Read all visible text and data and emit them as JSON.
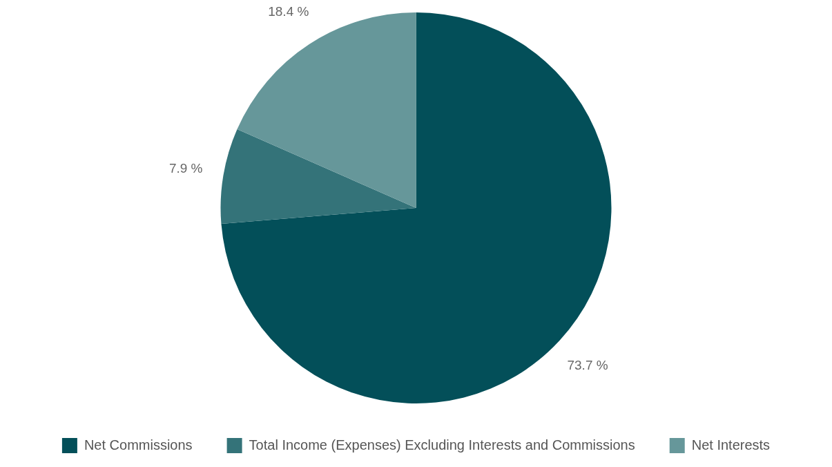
{
  "chart_data": {
    "type": "pie",
    "categories": [
      "Net Commissions",
      "Total Income (Expenses) Excluding Interests and Commissions",
      "Net Interests"
    ],
    "values": [
      73.7,
      7.9,
      18.4
    ],
    "colors": [
      "#034f59",
      "#347379",
      "#66979a"
    ],
    "value_labels": [
      "73.7 %",
      "7.9 %",
      "18.4 %"
    ],
    "legend": "bottom"
  }
}
